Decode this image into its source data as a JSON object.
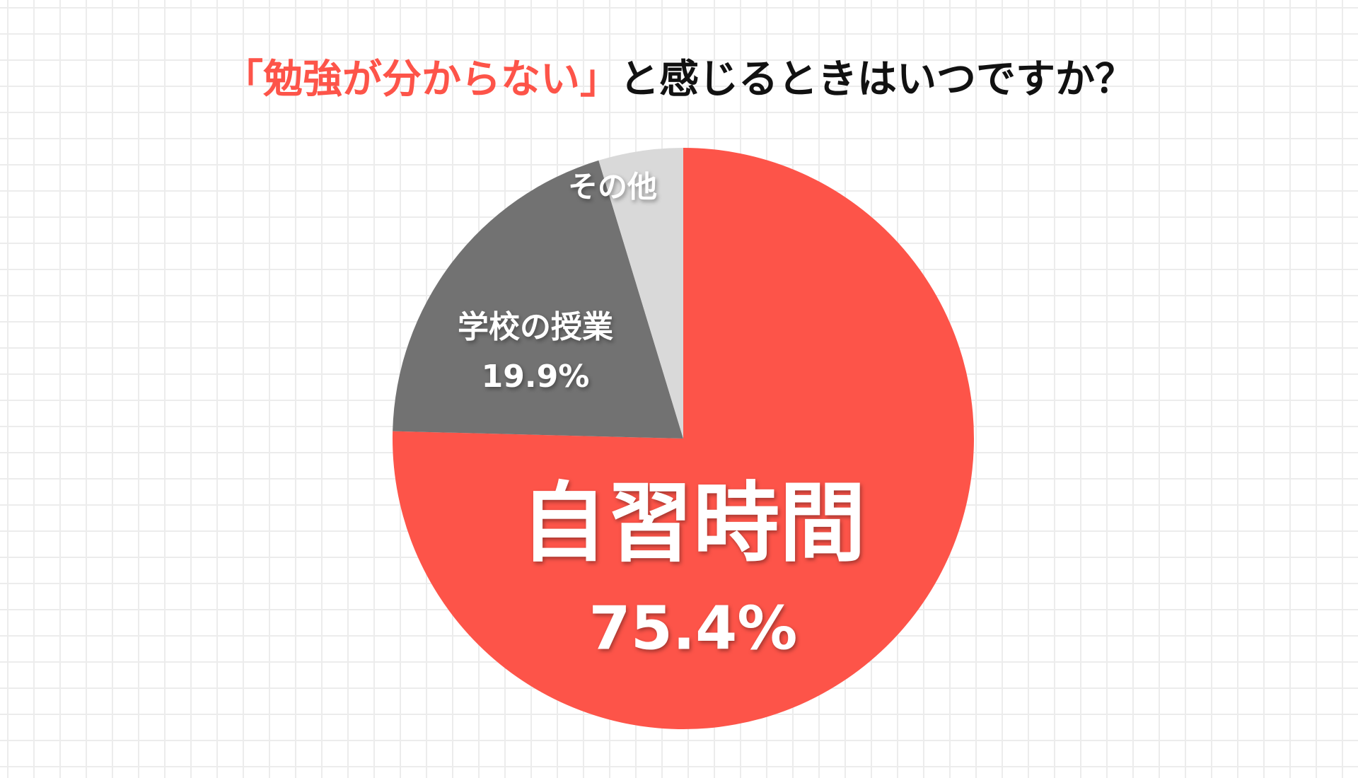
{
  "chart_data": {
    "type": "pie",
    "title_highlight": "「勉強が分からない」",
    "title": "と感じるときはいつですか？",
    "title_highlight_color": "#fd5449",
    "categories": [
      "自習時間",
      "学校の授業",
      "その他"
    ],
    "values": [
      75.4,
      19.9,
      4.7
    ],
    "value_labels": [
      "75.4%",
      "19.9%",
      null
    ],
    "colors": [
      "#fd5449",
      "#727272",
      "#d9d9d9"
    ]
  }
}
